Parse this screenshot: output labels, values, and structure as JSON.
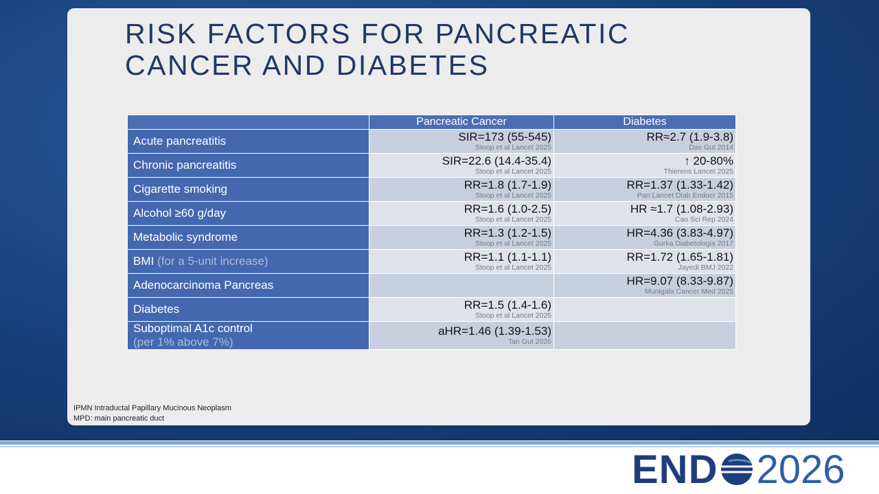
{
  "slide": {
    "title_lines": [
      "RISK FACTORS FOR PANCREATIC",
      "CANCER AND DIABETES"
    ],
    "table": {
      "header": [
        "Pancreatic Cancer",
        "Diabetes"
      ],
      "rows": [
        {
          "label": "Acute pancreatitis",
          "pancreatic": {
            "value": "SIR=173 (55-545)",
            "source": "Stoop et al Lancet 2025"
          },
          "diabetes": {
            "value": "RR≈2.7 (1.9-3.8)",
            "source": "Das Gut 2014"
          }
        },
        {
          "label": "Chronic pancreatitis",
          "pancreatic": {
            "value": "SIR=22.6 (14.4-35.4)",
            "source": "Stoop et al Lancet 2025"
          },
          "diabetes": {
            "value": "↑ 20-80%",
            "source": "Thierens Lancet 2025"
          }
        },
        {
          "label": "Cigarette smoking",
          "pancreatic": {
            "value": "RR=1.8 (1.7-1.9)",
            "source": "Stoop et al Lancet 2025"
          },
          "diabetes": {
            "value": "RR=1.37 (1.33-1.42)",
            "source": "Pan Lancet Diab Endocr 2015"
          }
        },
        {
          "label": "Alcohol ≥60 g/day",
          "pancreatic": {
            "value": "RR=1.6 (1.0-2.5)",
            "source": "Stoop et al Lancet 2025"
          },
          "diabetes": {
            "value": "HR ≈1.7 (1.08-2.93)",
            "source": "Cao Sci Rep 2024"
          }
        },
        {
          "label": "Metabolic syndrome",
          "pancreatic": {
            "value": "RR=1.3 (1.2-1.5)",
            "source": "Stoop et al Lancet 2025"
          },
          "diabetes": {
            "value": "HR=4.36 (3.83-4.97)",
            "source": "Gurka Diabetologia 2017"
          }
        },
        {
          "label": "BMI",
          "note": "(for a 5-unit increase)",
          "pancreatic": {
            "value": "RR=1.1 (1.1-1.1)",
            "source": "Stoop et al Lancet 2025"
          },
          "diabetes": {
            "value": "RR=1.72 (1.65-1.81)",
            "source": "Jayedi BMJ 2022"
          }
        },
        {
          "label": "Adenocarcinoma Pancreas",
          "diabetes": {
            "value": "HR=9.07 (8.33-9.87)",
            "source": "Munigala Cancer Med 2025"
          }
        },
        {
          "label": "Diabetes",
          "pancreatic": {
            "value": "RR=1.5 (1.4-1.6)",
            "source": "Stoop et al Lancet 2025"
          }
        },
        {
          "label": "Suboptimal A1c control",
          "note": "(per 1% above 7%)",
          "pancreatic": {
            "value": "aHR=1.46 (1.39-1.53)",
            "source": "Tan Gut 2026"
          }
        }
      ]
    },
    "footnotes": [
      "IPMN Intraductal Papillary Mucinous Neoplasm",
      "MPD: main pancreatic duct"
    ]
  },
  "logo": {
    "left": "END",
    "right": "2026"
  }
}
